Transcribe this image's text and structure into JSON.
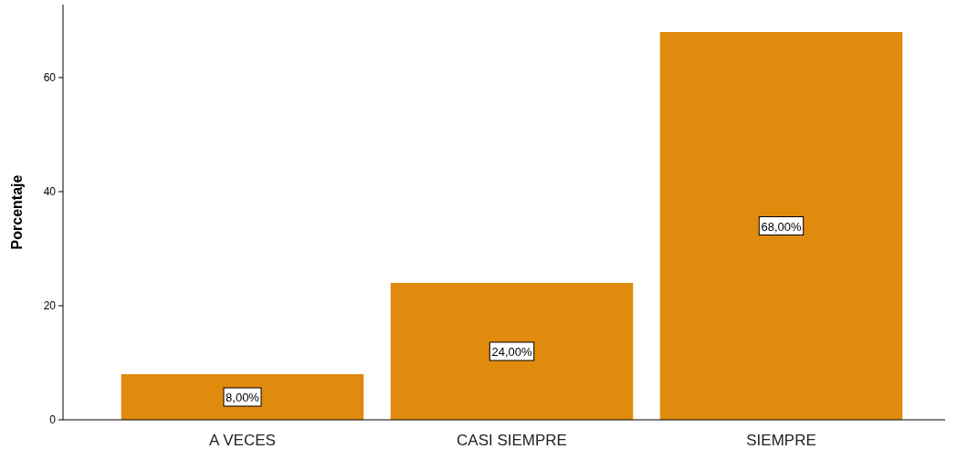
{
  "chart_data": {
    "type": "bar",
    "ylabel": "Porcentaje",
    "categories": [
      "A VECES",
      "CASI SIEMPRE",
      "SIEMPRE"
    ],
    "values": [
      8,
      24,
      68
    ],
    "value_labels": [
      "8,00%",
      "24,00%",
      "68,00%"
    ],
    "color": "#e08a0e",
    "ylim": [
      0,
      72.8
    ],
    "yticks": [
      0,
      20,
      40,
      60
    ],
    "grid": false
  }
}
